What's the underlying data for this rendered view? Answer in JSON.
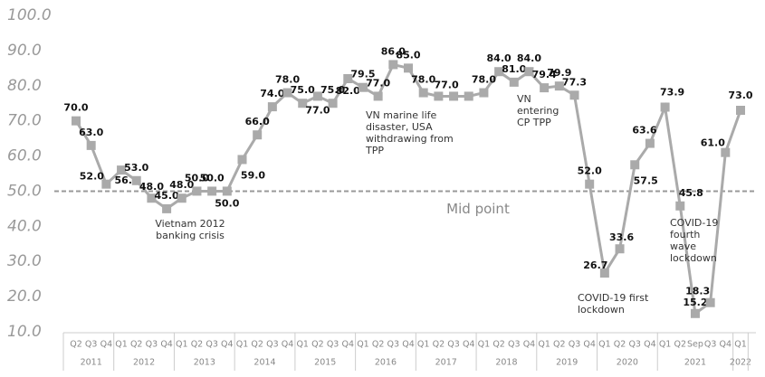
{
  "chart_data": {
    "type": "line",
    "categories": [
      "Q2",
      "Q3",
      "Q4",
      "Q1",
      "Q2",
      "Q3",
      "Q4",
      "Q1",
      "Q2",
      "Q3",
      "Q4",
      "Q1",
      "Q2",
      "Q3",
      "Q4",
      "Q1",
      "Q2",
      "Q3",
      "Q4",
      "Q1",
      "Q2",
      "Q3",
      "Q4",
      "Q1",
      "Q2",
      "Q3",
      "Q4",
      "Q1",
      "Q2",
      "Q3",
      "Q4",
      "Q1",
      "Q2",
      "Q3",
      "Q4",
      "Q1",
      "Q2",
      "Q3",
      "Q4",
      "Q1",
      "Q2",
      "Sep",
      "Q3",
      "Q4",
      "Q1"
    ],
    "groups": [
      {
        "label": "2011",
        "span": 3
      },
      {
        "label": "2012",
        "span": 4
      },
      {
        "label": "2013",
        "span": 4
      },
      {
        "label": "2014",
        "span": 4
      },
      {
        "label": "2015",
        "span": 4
      },
      {
        "label": "2016",
        "span": 4
      },
      {
        "label": "2017",
        "span": 4
      },
      {
        "label": "2018",
        "span": 4
      },
      {
        "label": "2019",
        "span": 4
      },
      {
        "label": "2020",
        "span": 4
      },
      {
        "label": "2021",
        "span": 5
      },
      {
        "label": "2022",
        "span": 1
      }
    ],
    "series": [
      {
        "name": "Index",
        "color": "#aaaaaa",
        "values": [
          70,
          63,
          52,
          56,
          53,
          48,
          45,
          48,
          50,
          50,
          50,
          59,
          66,
          74,
          78,
          75,
          77,
          75,
          82,
          79.5,
          77,
          86,
          85,
          78,
          77,
          77,
          77,
          78,
          84,
          81,
          84,
          79.4,
          79.9,
          77.3,
          52,
          26.7,
          33.6,
          57.5,
          63.6,
          73.9,
          45.8,
          15.2,
          18.3,
          61,
          73
        ],
        "value_labels": [
          "70.0",
          "63.0",
          "52.0",
          "56.0",
          "53.0",
          "48.0",
          "45.0",
          "48.0",
          "50.0",
          "50.0",
          "50.0",
          "59.0",
          "66.0",
          "74.0",
          "78.0",
          "75.0",
          "77.0",
          "75.0",
          "82.0",
          "79.5",
          "77.0",
          "86.0",
          "85.0",
          "78.0",
          null,
          "77.0",
          null,
          "78.0",
          "84.0",
          "81.0",
          "84.0",
          "79.4",
          "79.9",
          "77.3",
          "52.0",
          "26.7",
          "33.6",
          "57.5",
          "63.6",
          "73.9",
          "45.8",
          "15.2",
          "18.3",
          "61.0",
          "73.0"
        ]
      }
    ],
    "ylim": [
      10,
      100
    ],
    "yticks": [
      {
        "value": 10,
        "label": "10.0"
      },
      {
        "value": 20,
        "label": "20.0"
      },
      {
        "value": 30,
        "label": "30.0"
      },
      {
        "value": 40,
        "label": "40.0"
      },
      {
        "value": 50,
        "label": "50.0"
      },
      {
        "value": 60,
        "label": "60.0"
      },
      {
        "value": 70,
        "label": "70.0"
      },
      {
        "value": 80,
        "label": "80.0"
      },
      {
        "value": 90,
        "label": "90.0"
      },
      {
        "value": 100,
        "label": "100.0"
      }
    ],
    "reference_line": {
      "value": 50,
      "label": "Mid point"
    },
    "annotations": [
      "Vietnam 2012 banking crisis",
      "VN marine life disaster, USA withdrawing from TPP",
      "VN entering CP TPP",
      "COVID-19 first lockdown",
      "COVID-19 fourth wave lockdown"
    ]
  }
}
